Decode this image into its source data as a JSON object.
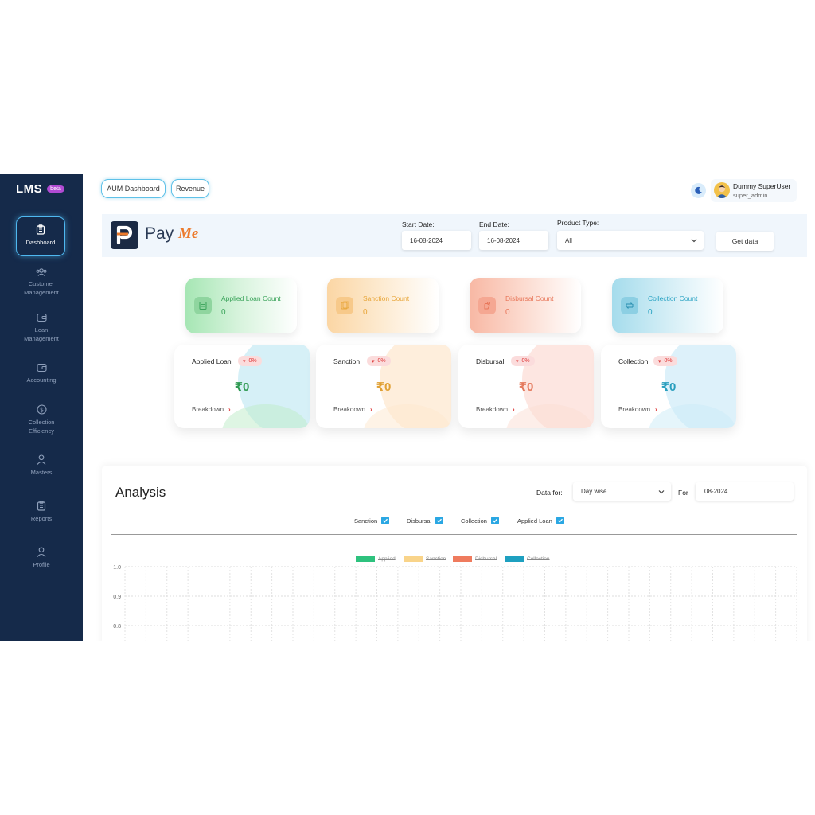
{
  "sidebar": {
    "brand": "LMS",
    "badge": "beta",
    "items": [
      {
        "label": "Dashboard",
        "icon": "clipboard-icon"
      },
      {
        "label": "Customer Management",
        "icon": "users-icon"
      },
      {
        "label": "Loan Management",
        "icon": "wallet-icon"
      },
      {
        "label": "Accounting",
        "icon": "wallet-icon"
      },
      {
        "label": "Collection Efficiency",
        "icon": "dollar-icon"
      },
      {
        "label": "Masters",
        "icon": "user-icon"
      },
      {
        "label": "Reports",
        "icon": "clipboard-icon"
      },
      {
        "label": "Profile",
        "icon": "user-icon"
      }
    ]
  },
  "topbar": {
    "aum_label": "AUM Dashboard",
    "revenue_label": "Revenue",
    "user_name": "Dummy SuperUser",
    "user_role": "super_admin"
  },
  "filters": {
    "logo_text_1": "Pay",
    "logo_text_2": "Me",
    "start_label": "Start Date:",
    "start_value": "16-08-2024",
    "end_label": "End Date:",
    "end_value": "16-08-2024",
    "product_label": "Product Type:",
    "product_value": "All",
    "get_data": "Get data"
  },
  "counts": [
    {
      "label": "Applied Loan Count",
      "value": "0",
      "color": "#3aa35a"
    },
    {
      "label": "Sanction Count",
      "value": "0",
      "color": "#e8a63a"
    },
    {
      "label": "Disbursal Count",
      "value": "0",
      "color": "#e8775a"
    },
    {
      "label": "Collection Count",
      "value": "0",
      "color": "#2aa3c3"
    }
  ],
  "amounts": [
    {
      "label": "Applied Loan",
      "badge": "0%",
      "value": "₹0",
      "breakdown": "Breakdown",
      "color": "#2f9a52"
    },
    {
      "label": "Sanction",
      "badge": "0%",
      "value": "₹0",
      "breakdown": "Breakdown",
      "color": "#e0a033"
    },
    {
      "label": "Disbursal",
      "badge": "0%",
      "value": "₹0",
      "breakdown": "Breakdown",
      "color": "#e47a5e"
    },
    {
      "label": "Collection",
      "badge": "0%",
      "value": "₹0",
      "breakdown": "Breakdown",
      "color": "#2a9fbe"
    }
  ],
  "analysis": {
    "title": "Analysis",
    "data_for_label": "Data for:",
    "data_for_value": "Day wise",
    "for_label": "For",
    "for_value": "08-2024",
    "checkboxes": [
      "Sanction",
      "Disbursal",
      "Collection",
      "Applied Loan"
    ]
  },
  "chart_data": {
    "type": "bar",
    "series": [
      {
        "name": "Applied",
        "color": "#2ec27e",
        "values": []
      },
      {
        "name": "Sanction",
        "color": "#f9d48a",
        "values": []
      },
      {
        "name": "Disbursal",
        "color": "#ef7b5e",
        "values": []
      },
      {
        "name": "Collection",
        "color": "#1ea0c0",
        "values": []
      }
    ],
    "yticks": [
      "1.0",
      "0.9",
      "0.8"
    ],
    "ylim": [
      0.8,
      1.0
    ],
    "grid": true,
    "legend": "top-center"
  }
}
